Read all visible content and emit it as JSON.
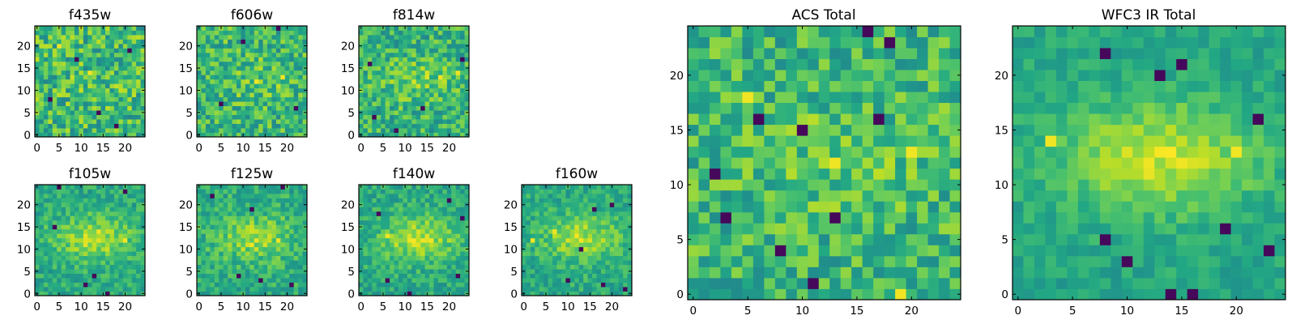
{
  "figure": {
    "colormap": "viridis",
    "image_size": [
      25,
      25
    ],
    "note_values": "pixel intensities not printed; values below are approximate normalized 0-1 brightness patterns read from the image"
  },
  "chart_data": [
    {
      "type": "heatmap",
      "title": "f435w",
      "xticks": [
        "0",
        "5",
        "10",
        "15",
        "20"
      ],
      "yticks": [
        "0",
        "5",
        "10",
        "15",
        "20"
      ],
      "xlim": [
        0,
        24
      ],
      "ylim": [
        0,
        24
      ],
      "seed": 11,
      "blob": 0.05,
      "noise": 0.9,
      "dark_spots": [
        [
          3,
          8
        ],
        [
          14,
          5
        ],
        [
          21,
          19
        ],
        [
          9,
          17
        ],
        [
          18,
          2
        ]
      ],
      "bright_spots": [
        [
          12,
          14
        ],
        [
          5,
          20
        ]
      ]
    },
    {
      "type": "heatmap",
      "title": "f606w",
      "xticks": [
        "0",
        "5",
        "10",
        "15",
        "20"
      ],
      "yticks": [
        "0",
        "5",
        "10",
        "15",
        "20"
      ],
      "xlim": [
        0,
        24
      ],
      "ylim": [
        0,
        24
      ],
      "seed": 23,
      "blob": 0.2,
      "noise": 0.8,
      "dark_spots": [
        [
          18,
          24
        ],
        [
          5,
          7
        ],
        [
          22,
          6
        ],
        [
          10,
          21
        ]
      ],
      "bright_spots": [
        [
          13,
          12
        ],
        [
          19,
          13
        ]
      ]
    },
    {
      "type": "heatmap",
      "title": "f814w",
      "xticks": [
        "0",
        "5",
        "10",
        "15",
        "20"
      ],
      "yticks": [
        "0",
        "5",
        "10",
        "15",
        "20"
      ],
      "xlim": [
        0,
        24
      ],
      "ylim": [
        0,
        24
      ],
      "seed": 37,
      "blob": 0.35,
      "noise": 0.75,
      "dark_spots": [
        [
          2,
          16
        ],
        [
          3,
          4
        ],
        [
          14,
          6
        ],
        [
          23,
          17
        ],
        [
          8,
          1
        ]
      ],
      "bright_spots": [
        [
          18,
          13
        ],
        [
          22,
          14
        ]
      ]
    },
    {
      "type": "heatmap",
      "title": "f105w",
      "xticks": [
        "0",
        "5",
        "10",
        "15",
        "20"
      ],
      "yticks": [
        "0",
        "5",
        "10",
        "15",
        "20"
      ],
      "xlim": [
        0,
        24
      ],
      "ylim": [
        0,
        24
      ],
      "seed": 41,
      "blob": 0.7,
      "noise": 0.5,
      "dark_spots": [
        [
          5,
          24
        ],
        [
          11,
          2
        ],
        [
          16,
          0
        ],
        [
          13,
          4
        ],
        [
          4,
          15
        ],
        [
          20,
          23
        ]
      ],
      "bright_spots": [
        [
          14,
          14
        ],
        [
          20,
          12
        ]
      ]
    },
    {
      "type": "heatmap",
      "title": "f125w",
      "xticks": [
        "0",
        "5",
        "10",
        "15",
        "20"
      ],
      "yticks": [
        "0",
        "5",
        "10",
        "15",
        "20"
      ],
      "xlim": [
        0,
        24
      ],
      "ylim": [
        0,
        24
      ],
      "seed": 53,
      "blob": 0.6,
      "noise": 0.55,
      "dark_spots": [
        [
          12,
          19
        ],
        [
          19,
          24
        ],
        [
          14,
          3
        ],
        [
          21,
          2
        ],
        [
          9,
          4
        ],
        [
          3,
          22
        ]
      ],
      "bright_spots": [
        [
          12,
          11
        ],
        [
          18,
          12
        ]
      ]
    },
    {
      "type": "heatmap",
      "title": "f140w",
      "xticks": [
        "0",
        "5",
        "10",
        "15",
        "20"
      ],
      "yticks": [
        "0",
        "5",
        "10",
        "15",
        "20"
      ],
      "xlim": [
        0,
        24
      ],
      "ylim": [
        0,
        24
      ],
      "seed": 67,
      "blob": 0.75,
      "noise": 0.5,
      "dark_spots": [
        [
          20,
          21
        ],
        [
          23,
          17
        ],
        [
          6,
          3
        ],
        [
          11,
          0
        ],
        [
          4,
          18
        ],
        [
          22,
          4
        ]
      ],
      "bright_spots": [
        [
          6,
          13
        ],
        [
          16,
          12
        ]
      ]
    },
    {
      "type": "heatmap",
      "title": "f160w",
      "xticks": [
        "0",
        "5",
        "10",
        "15",
        "20"
      ],
      "yticks": [
        "0",
        "5",
        "10",
        "15",
        "20"
      ],
      "xlim": [
        0,
        24
      ],
      "ylim": [
        0,
        24
      ],
      "seed": 79,
      "blob": 0.7,
      "noise": 0.5,
      "dark_spots": [
        [
          20,
          20
        ],
        [
          13,
          10
        ],
        [
          10,
          3
        ],
        [
          23,
          1
        ],
        [
          18,
          2
        ],
        [
          16,
          19
        ]
      ],
      "bright_spots": [
        [
          2,
          12
        ],
        [
          7,
          14
        ]
      ]
    },
    {
      "type": "heatmap",
      "title": "ACS Total",
      "xticks": [
        "0",
        "5",
        "10",
        "15",
        "20"
      ],
      "yticks": [
        "0",
        "5",
        "10",
        "15",
        "20"
      ],
      "xlim": [
        0,
        24
      ],
      "ylim": [
        0,
        24
      ],
      "seed": 97,
      "blob": 0.2,
      "noise": 0.75,
      "dark_spots": [
        [
          16,
          24
        ],
        [
          6,
          16
        ],
        [
          10,
          15
        ],
        [
          17,
          16
        ],
        [
          2,
          11
        ],
        [
          3,
          7
        ],
        [
          13,
          7
        ],
        [
          8,
          4
        ],
        [
          11,
          1
        ],
        [
          18,
          23
        ]
      ],
      "bright_spots": [
        [
          20,
          13
        ],
        [
          19,
          0
        ],
        [
          13,
          12
        ],
        [
          5,
          18
        ]
      ]
    },
    {
      "type": "heatmap",
      "title": "WFC3 IR Total",
      "xticks": [
        "0",
        "5",
        "10",
        "15",
        "20"
      ],
      "yticks": [
        "0",
        "5",
        "10",
        "15",
        "20"
      ],
      "xlim": [
        0,
        24
      ],
      "ylim": [
        0,
        24
      ],
      "seed": 131,
      "blob": 0.85,
      "noise": 0.35,
      "dark_spots": [
        [
          13,
          20
        ],
        [
          8,
          22
        ],
        [
          22,
          16
        ],
        [
          15,
          21
        ],
        [
          8,
          5
        ],
        [
          10,
          3
        ],
        [
          19,
          6
        ],
        [
          16,
          0
        ],
        [
          14,
          0
        ],
        [
          23,
          4
        ]
      ],
      "bright_spots": [
        [
          12,
          12
        ],
        [
          15,
          12
        ],
        [
          3,
          14
        ],
        [
          20,
          13
        ]
      ]
    }
  ]
}
